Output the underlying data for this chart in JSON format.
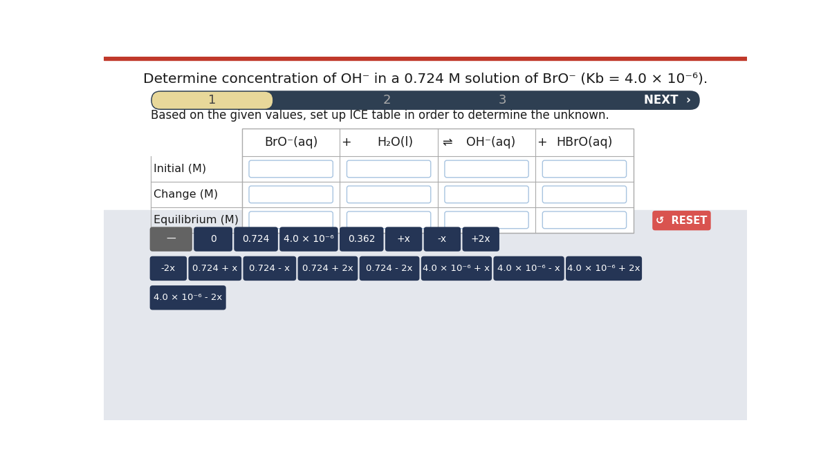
{
  "title": "Determine concentration of OH⁻ in a 0.724 M solution of BrO⁻ (Kb = 4.0 × 10⁻⁶).",
  "subtitle": "Based on the given values, set up ICE table in order to determine the unknown.",
  "row_labels": [
    "Initial (M)",
    "Change (M)",
    "Equilibrium (M)"
  ],
  "top_bar_color": "#c0392b",
  "nav_bar_bg": "#2e3f52",
  "nav_active_bg": "#e8d89a",
  "page_bg": "#ffffff",
  "bottom_area_bg": "#e4e7ed",
  "button_dark_bg": "#253555",
  "button_gray_bg": "#636363",
  "button_reset_bg": "#d9534f",
  "table_cell_border": "#a8c4e0",
  "buttons_row1": [
    "—",
    "0",
    "0.724",
    "4.0 × 10⁻⁶",
    "0.362",
    "+x",
    "-x",
    "+2x"
  ],
  "buttons_row1_widths": [
    75,
    68,
    78,
    105,
    78,
    65,
    65,
    65
  ],
  "buttons_row2": [
    "-2x",
    "0.724 + x",
    "0.724 - x",
    "0.724 + 2x",
    "0.724 - 2x",
    "4.0 × 10⁻⁶ + x",
    "4.0 × 10⁻⁶ - x",
    "4.0 × 10⁻⁶ + 2x"
  ],
  "buttons_row2_widths": [
    65,
    95,
    95,
    108,
    108,
    128,
    128,
    138
  ],
  "buttons_row3": [
    "4.0 × 10⁻⁶ - 2x"
  ],
  "buttons_row3_widths": [
    138
  ]
}
